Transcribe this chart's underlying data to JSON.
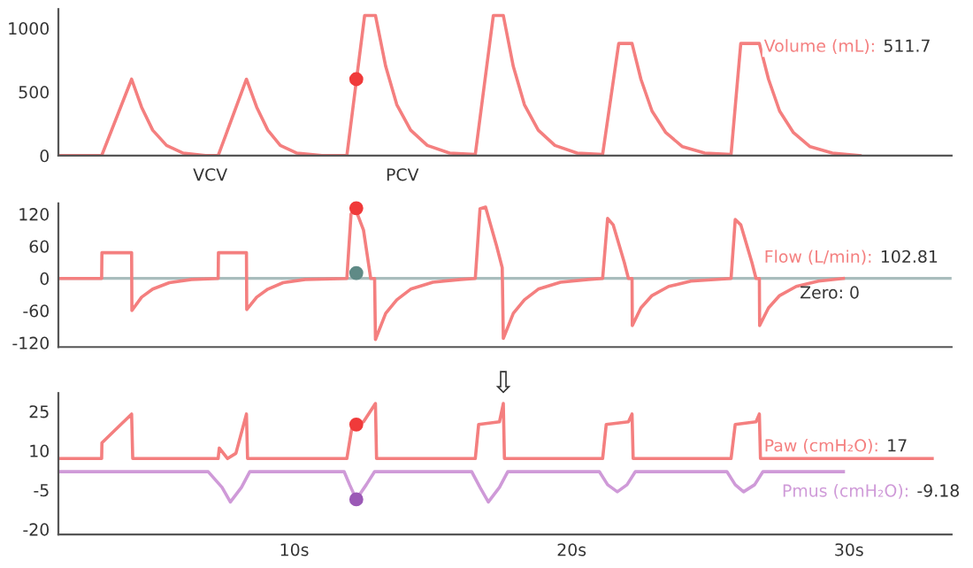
{
  "chart_data": [
    {
      "type": "line",
      "xlim": [
        1.5,
        33.7
      ],
      "ylim": [
        0,
        1150
      ],
      "yticks": [
        0,
        500,
        1000
      ],
      "tick_labels": "y",
      "marker": "none",
      "line_style": "solid",
      "series": [
        {
          "name": "Volume (mL):",
          "color": "#f47f7f",
          "x": [
            1.5,
            3.06,
            4.14,
            4.5,
            4.9,
            5.4,
            6.0,
            6.8,
            7.26,
            8.28,
            8.65,
            9.05,
            9.5,
            10.1,
            11.0,
            11.9,
            12.54,
            12.93,
            13.3,
            13.7,
            14.2,
            14.8,
            15.6,
            16.53,
            17.18,
            17.54,
            17.9,
            18.3,
            18.8,
            19.4,
            20.2,
            21.12,
            21.7,
            22.18,
            22.5,
            22.9,
            23.4,
            24.0,
            24.8,
            25.75,
            26.1,
            26.77,
            27.1,
            27.5,
            28.0,
            28.6,
            29.4,
            30.4
          ],
          "values": [
            0,
            0,
            600,
            380,
            200,
            80,
            20,
            0,
            0,
            600,
            380,
            200,
            80,
            20,
            0,
            0,
            1100,
            1100,
            700,
            400,
            200,
            80,
            20,
            10,
            1100,
            1100,
            700,
            400,
            200,
            80,
            20,
            10,
            880,
            880,
            600,
            350,
            180,
            70,
            20,
            10,
            880,
            880,
            600,
            350,
            180,
            70,
            20,
            0
          ]
        },
        {
          "type": "scatter",
          "marker": "circle",
          "color": "#f03a3a",
          "x": [
            12.24
          ],
          "values": [
            600
          ]
        }
      ],
      "annotations": [
        "511.7",
        "VCV",
        "PCV"
      ]
    },
    {
      "type": "line",
      "xlim": [
        1.5,
        33.7
      ],
      "ylim": [
        -128,
        140
      ],
      "yticks": [
        -120,
        -60,
        0,
        60,
        120
      ],
      "tick_labels": "y",
      "marker": "none",
      "line_style": "solid",
      "ref_lines": [
        {
          "axis": "y",
          "value": 0,
          "label": "Zero: 0",
          "color": "#a9bdbd"
        }
      ],
      "series": [
        {
          "name": "Flow (L/min):",
          "color": "#f47f7f",
          "x": [
            1.5,
            3.06,
            3.07,
            4.14,
            4.15,
            4.5,
            4.9,
            5.5,
            6.3,
            7.26,
            7.27,
            8.28,
            8.29,
            8.65,
            9.05,
            9.6,
            10.4,
            11.9,
            12.05,
            12.2,
            12.5,
            12.76,
            12.9,
            12.93,
            13.3,
            13.7,
            14.2,
            15.0,
            16.0,
            16.53,
            16.7,
            16.9,
            17.3,
            17.5,
            17.54,
            17.9,
            18.3,
            18.8,
            19.6,
            20.6,
            21.12,
            21.3,
            21.5,
            21.9,
            22.05,
            22.18,
            22.19,
            22.5,
            22.9,
            23.5,
            24.3,
            25.75,
            25.9,
            26.1,
            26.5,
            26.65,
            26.77,
            26.78,
            27.1,
            27.5,
            28.1,
            28.9,
            29.8
          ],
          "values": [
            0,
            0,
            48,
            48,
            -60,
            -35,
            -20,
            -8,
            -2,
            0,
            48,
            48,
            -58,
            -35,
            -20,
            -8,
            -2,
            0,
            120,
            131,
            90,
            0,
            0,
            -114,
            -65,
            -40,
            -20,
            -7,
            -2,
            0,
            130,
            133,
            60,
            20,
            -112,
            -65,
            -40,
            -20,
            -7,
            -2,
            0,
            112,
            100,
            30,
            0,
            0,
            -88,
            -55,
            -32,
            -15,
            -5,
            0,
            110,
            100,
            30,
            0,
            0,
            -88,
            -55,
            -32,
            -15,
            -5,
            0
          ]
        },
        {
          "type": "scatter",
          "marker": "circle",
          "color": "#f03a3a",
          "x": [
            12.24
          ],
          "values": [
            131
          ]
        },
        {
          "type": "scatter",
          "marker": "circle",
          "color": "#5f8a86",
          "x": [
            12.24
          ],
          "values": [
            10
          ]
        }
      ],
      "annotations": [
        "102.81"
      ]
    },
    {
      "type": "line",
      "xlim": [
        1.5,
        33.7
      ],
      "xticks": [
        {
          "value": 10,
          "label": "10s"
        },
        {
          "value": 20,
          "label": "20s"
        },
        {
          "value": 30,
          "label": "30s"
        }
      ],
      "ylim": [
        -22,
        32
      ],
      "yticks": [
        -20,
        -5,
        10,
        25
      ],
      "marker": "none",
      "line_style": "solid",
      "series": [
        {
          "name": "Paw (cmH₂O):",
          "color": "#f47f7f",
          "x": [
            1.5,
            3.06,
            3.07,
            4.14,
            4.18,
            7.26,
            7.3,
            7.6,
            7.9,
            8.28,
            8.32,
            11.9,
            12.1,
            12.5,
            12.93,
            12.97,
            16.53,
            16.65,
            17.4,
            17.54,
            17.58,
            21.12,
            21.25,
            22.05,
            22.18,
            22.22,
            25.75,
            25.9,
            26.65,
            26.77,
            26.81,
            33.0
          ],
          "values": [
            7,
            7,
            13,
            24,
            7,
            7,
            11,
            7,
            9,
            24,
            7,
            7,
            20,
            21,
            28,
            7,
            7,
            20,
            21,
            28,
            7,
            7,
            20,
            21,
            24,
            7,
            7,
            20,
            21,
            24,
            7,
            7
          ]
        },
        {
          "name": "Pmus (cmH₂O):",
          "color": "#cf9ad8",
          "x": [
            1.5,
            6.9,
            7.4,
            7.7,
            8.1,
            8.4,
            11.8,
            12.0,
            12.24,
            12.6,
            12.9,
            16.4,
            16.7,
            17.0,
            17.4,
            17.7,
            21.0,
            21.3,
            21.65,
            22.0,
            22.3,
            25.6,
            25.9,
            26.2,
            26.6,
            26.9,
            29.8
          ],
          "values": [
            2,
            2,
            -4,
            -9.6,
            -4,
            2,
            2,
            -3,
            -8.6,
            -3,
            2,
            2,
            -4,
            -9.6,
            -4,
            2,
            2,
            -3,
            -5.7,
            -3,
            2,
            2,
            -3,
            -5.7,
            -3,
            2,
            2
          ]
        },
        {
          "type": "scatter",
          "marker": "circle",
          "color": "#f03a3a",
          "x": [
            12.24
          ],
          "values": [
            20
          ]
        },
        {
          "type": "scatter",
          "marker": "circle",
          "color": "#9b59b6",
          "x": [
            12.24
          ],
          "values": [
            -8.6
          ]
        }
      ],
      "annotations": [
        "17",
        "-9.18",
        {
          "text": "⇩",
          "x": 17.54,
          "y": 28
        }
      ]
    }
  ]
}
